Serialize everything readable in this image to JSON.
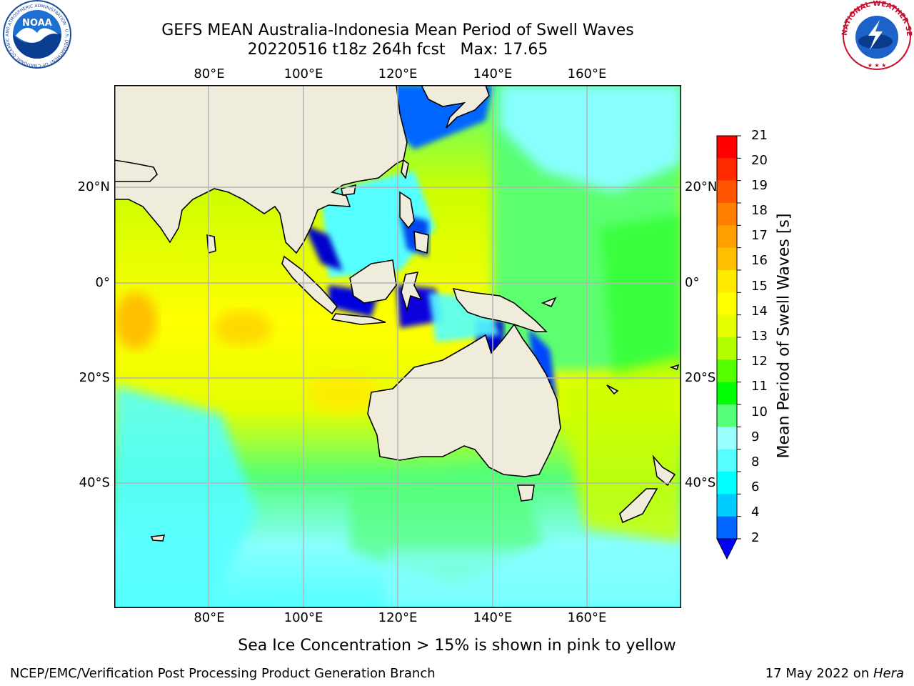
{
  "title": {
    "line1": "GEFS MEAN Australia-Indonesia Mean Period of Swell Waves",
    "line2": "20220516 t18z 264h fcst   Max: 17.65"
  },
  "map": {
    "lon_ticks": [
      "80°E",
      "100°E",
      "120°E",
      "140°E",
      "160°E"
    ],
    "lat_ticks": [
      "20°N",
      "0°",
      "20°S",
      "40°S"
    ],
    "lon_range_deg": [
      60,
      180
    ],
    "lat_range_deg": [
      -68,
      42
    ],
    "grid": true,
    "projection": "cylindrical",
    "land_color": "#efecdc",
    "ocean_dominant_colors": [
      "#ffff00",
      "#ccff00",
      "#00ff00",
      "#55ff77",
      "#00ffff",
      "#88ffff",
      "#0055ff",
      "#0000cc"
    ]
  },
  "colorbar": {
    "title": "Mean Period of Swell Waves [s]",
    "labels": [
      "21",
      "20",
      "19",
      "18",
      "17",
      "16",
      "15",
      "14",
      "13",
      "12",
      "11",
      "10",
      "9",
      "8",
      "6",
      "4",
      "2"
    ],
    "bins_top_to_bottom": [
      {
        "color": "#ff0000"
      },
      {
        "color": "#ff2a00"
      },
      {
        "color": "#ff5500"
      },
      {
        "color": "#ff7f00"
      },
      {
        "color": "#ff9f00"
      },
      {
        "color": "#ffbf00"
      },
      {
        "color": "#ffea00"
      },
      {
        "color": "#ffff00"
      },
      {
        "color": "#e5ff00"
      },
      {
        "color": "#b3ff00"
      },
      {
        "color": "#55ff00"
      },
      {
        "color": "#00ff00"
      },
      {
        "color": "#55ff77"
      },
      {
        "color": "#99ffff"
      },
      {
        "color": "#55ffff"
      },
      {
        "color": "#00ffff"
      },
      {
        "color": "#00ccff"
      },
      {
        "color": "#0066ff"
      }
    ],
    "extend_color": "#0000ff"
  },
  "ice_note": "Sea Ice Concentration > 15% is shown in pink to yellow",
  "footer": {
    "left": "NCEP/EMC/Verification Post Processing Product Generation Branch",
    "right_date": "17 May 2022 on ",
    "right_machine": "Hera"
  },
  "logos": {
    "noaa": {
      "text": "NOAA",
      "ring_text": "NATIONAL OCEANIC AND ATMOSPHERIC ADMINISTRATION · U.S. DEPARTMENT OF COMMERCE"
    },
    "nws": {
      "ring_text": "NATIONAL WEATHER SERVICE"
    }
  }
}
